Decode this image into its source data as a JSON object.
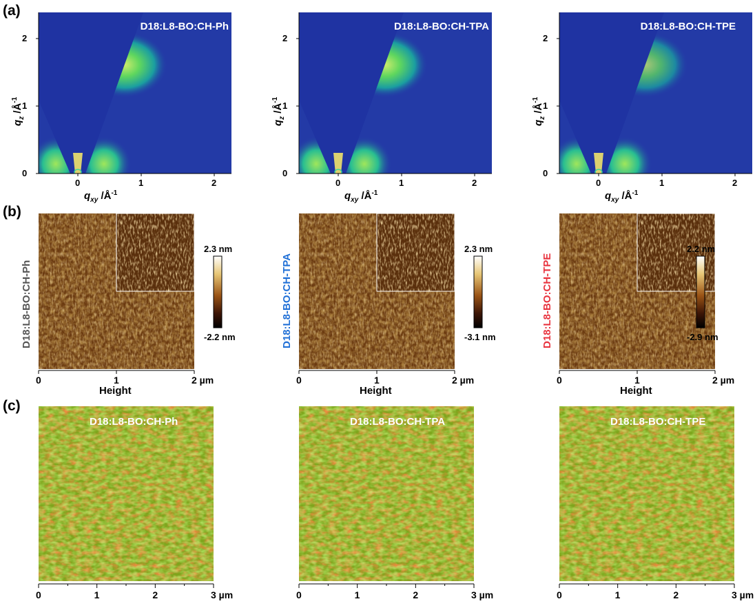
{
  "panel_labels": {
    "a": "(a)",
    "b": "(b)",
    "c": "(c)"
  },
  "samples": [
    {
      "name": "D18:L8-BO:CH-Ph",
      "color": "#555555",
      "afm_max": "2.3 nm",
      "afm_min": "-2.2 nm"
    },
    {
      "name": "D18:L8-BO:CH-TPA",
      "color": "#1f6fd6",
      "afm_max": "2.3 nm",
      "afm_min": "-3.1 nm"
    },
    {
      "name": "D18:L8-BO:CH-TPE",
      "color": "#e8333e",
      "afm_max": "2.2 nm",
      "afm_min": "-2.9 nm"
    }
  ],
  "giwaxs": {
    "xticks": [
      "-0",
      "0",
      "1",
      "2"
    ],
    "yticks": [
      "0",
      "1",
      "2"
    ],
    "xlabel": "q",
    "xlabel_sub": "xy",
    "xlabel_unit": " /Å",
    "ylabel": "q",
    "ylabel_sub": "z",
    "ylabel_unit": " /Å",
    "unit_exp": "-1"
  },
  "afm": {
    "ticks": [
      "0",
      "1",
      "2 µm"
    ],
    "xlabel": "Height"
  },
  "colormap": {
    "ticks": [
      "0",
      "1",
      "2",
      "3 µm"
    ]
  }
}
